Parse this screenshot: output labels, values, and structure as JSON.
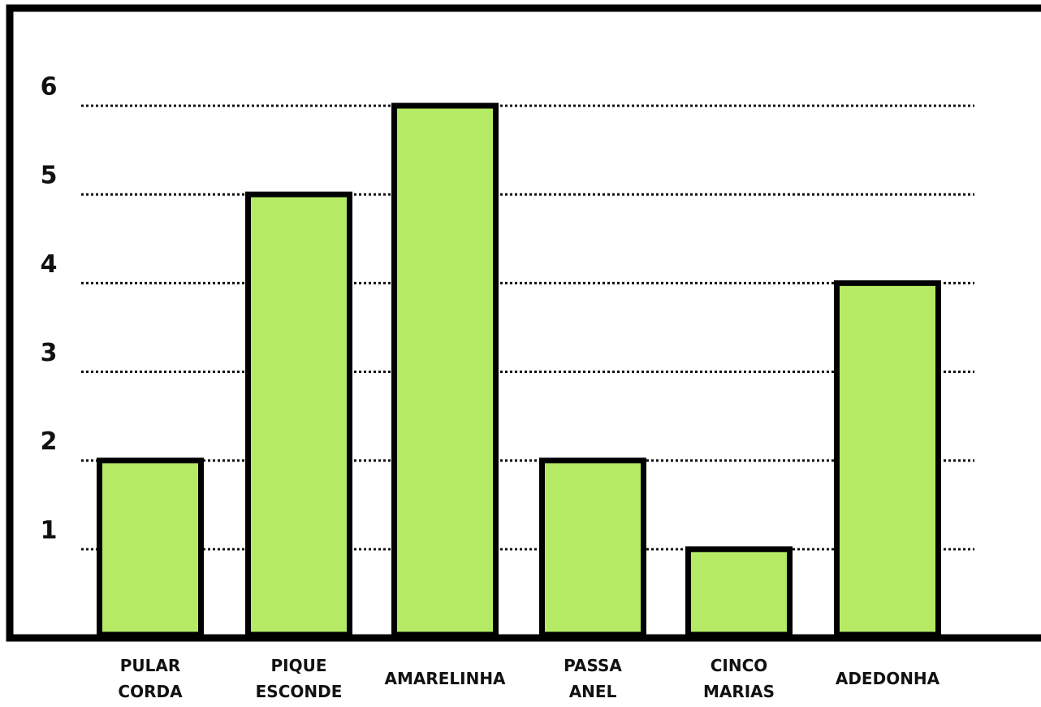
{
  "chart_data": {
    "type": "bar",
    "categories": [
      "PULAR CORDA",
      "PIQUE ESCONDE",
      "AMARELINHA",
      "PASSA ANEL",
      "CINCO MARIAS",
      "ADEDONHA"
    ],
    "values": [
      2,
      5,
      6,
      2,
      1,
      4
    ],
    "color": "#b5eb64",
    "ylim": [
      0,
      7.1
    ],
    "yticks": [
      1,
      2,
      3,
      4,
      5,
      6
    ],
    "grid": true
  }
}
